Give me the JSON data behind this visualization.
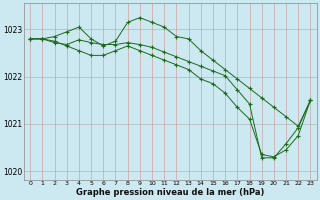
{
  "title": "Graphe pression niveau de la mer (hPa)",
  "background_color": "#cce8f0",
  "plot_color": "#1a6b1a",
  "grid_color_v": "#d09090",
  "grid_color_h": "#aaaaaa",
  "ylim": [
    1019.8,
    1023.55
  ],
  "xlim": [
    -0.5,
    23.5
  ],
  "yticks": [
    1020,
    1021,
    1022,
    1023
  ],
  "xticks": [
    0,
    1,
    2,
    3,
    4,
    5,
    6,
    7,
    8,
    9,
    10,
    11,
    12,
    13,
    14,
    15,
    16,
    17,
    18,
    19,
    20,
    21,
    22,
    23
  ],
  "line1_x": [
    0,
    1,
    2,
    3,
    4,
    5,
    6,
    7,
    8,
    9,
    10,
    11,
    12,
    13,
    14,
    15,
    16,
    17,
    18,
    19,
    20,
    21,
    22,
    23
  ],
  "line1_y": [
    1022.8,
    1022.8,
    1022.85,
    1022.95,
    1023.05,
    1022.8,
    1022.65,
    1022.75,
    1023.15,
    1023.25,
    1023.15,
    1023.05,
    1022.85,
    1022.8,
    1022.55,
    1022.35,
    1022.15,
    1021.95,
    1021.75,
    1021.55,
    1021.35,
    1021.15,
    1020.95,
    1021.5
  ],
  "line2_x": [
    0,
    1,
    2,
    3,
    4,
    5,
    6,
    7,
    8,
    9,
    10,
    11,
    12,
    13,
    14,
    15,
    16,
    17,
    18,
    19,
    20,
    21,
    22,
    23
  ],
  "line2_y": [
    1022.8,
    1022.8,
    1022.75,
    1022.65,
    1022.55,
    1022.45,
    1022.45,
    1022.55,
    1022.65,
    1022.55,
    1022.45,
    1022.35,
    1022.25,
    1022.15,
    1021.95,
    1021.85,
    1021.65,
    1021.35,
    1021.1,
    1020.35,
    1020.3,
    1020.45,
    1020.75,
    1021.5
  ],
  "line3_x": [
    0,
    1,
    2,
    3,
    4,
    5,
    6,
    7,
    8,
    9,
    10,
    11,
    12,
    13,
    14,
    15,
    16,
    17,
    18,
    19,
    20,
    21,
    22,
    23
  ],
  "line3_y": [
    1022.8,
    1022.8,
    1022.72,
    1022.68,
    1022.78,
    1022.72,
    1022.68,
    1022.68,
    1022.72,
    1022.68,
    1022.62,
    1022.52,
    1022.42,
    1022.32,
    1022.22,
    1022.12,
    1022.02,
    1021.72,
    1021.42,
    1020.28,
    1020.28,
    1020.58,
    1020.92,
    1021.5
  ]
}
